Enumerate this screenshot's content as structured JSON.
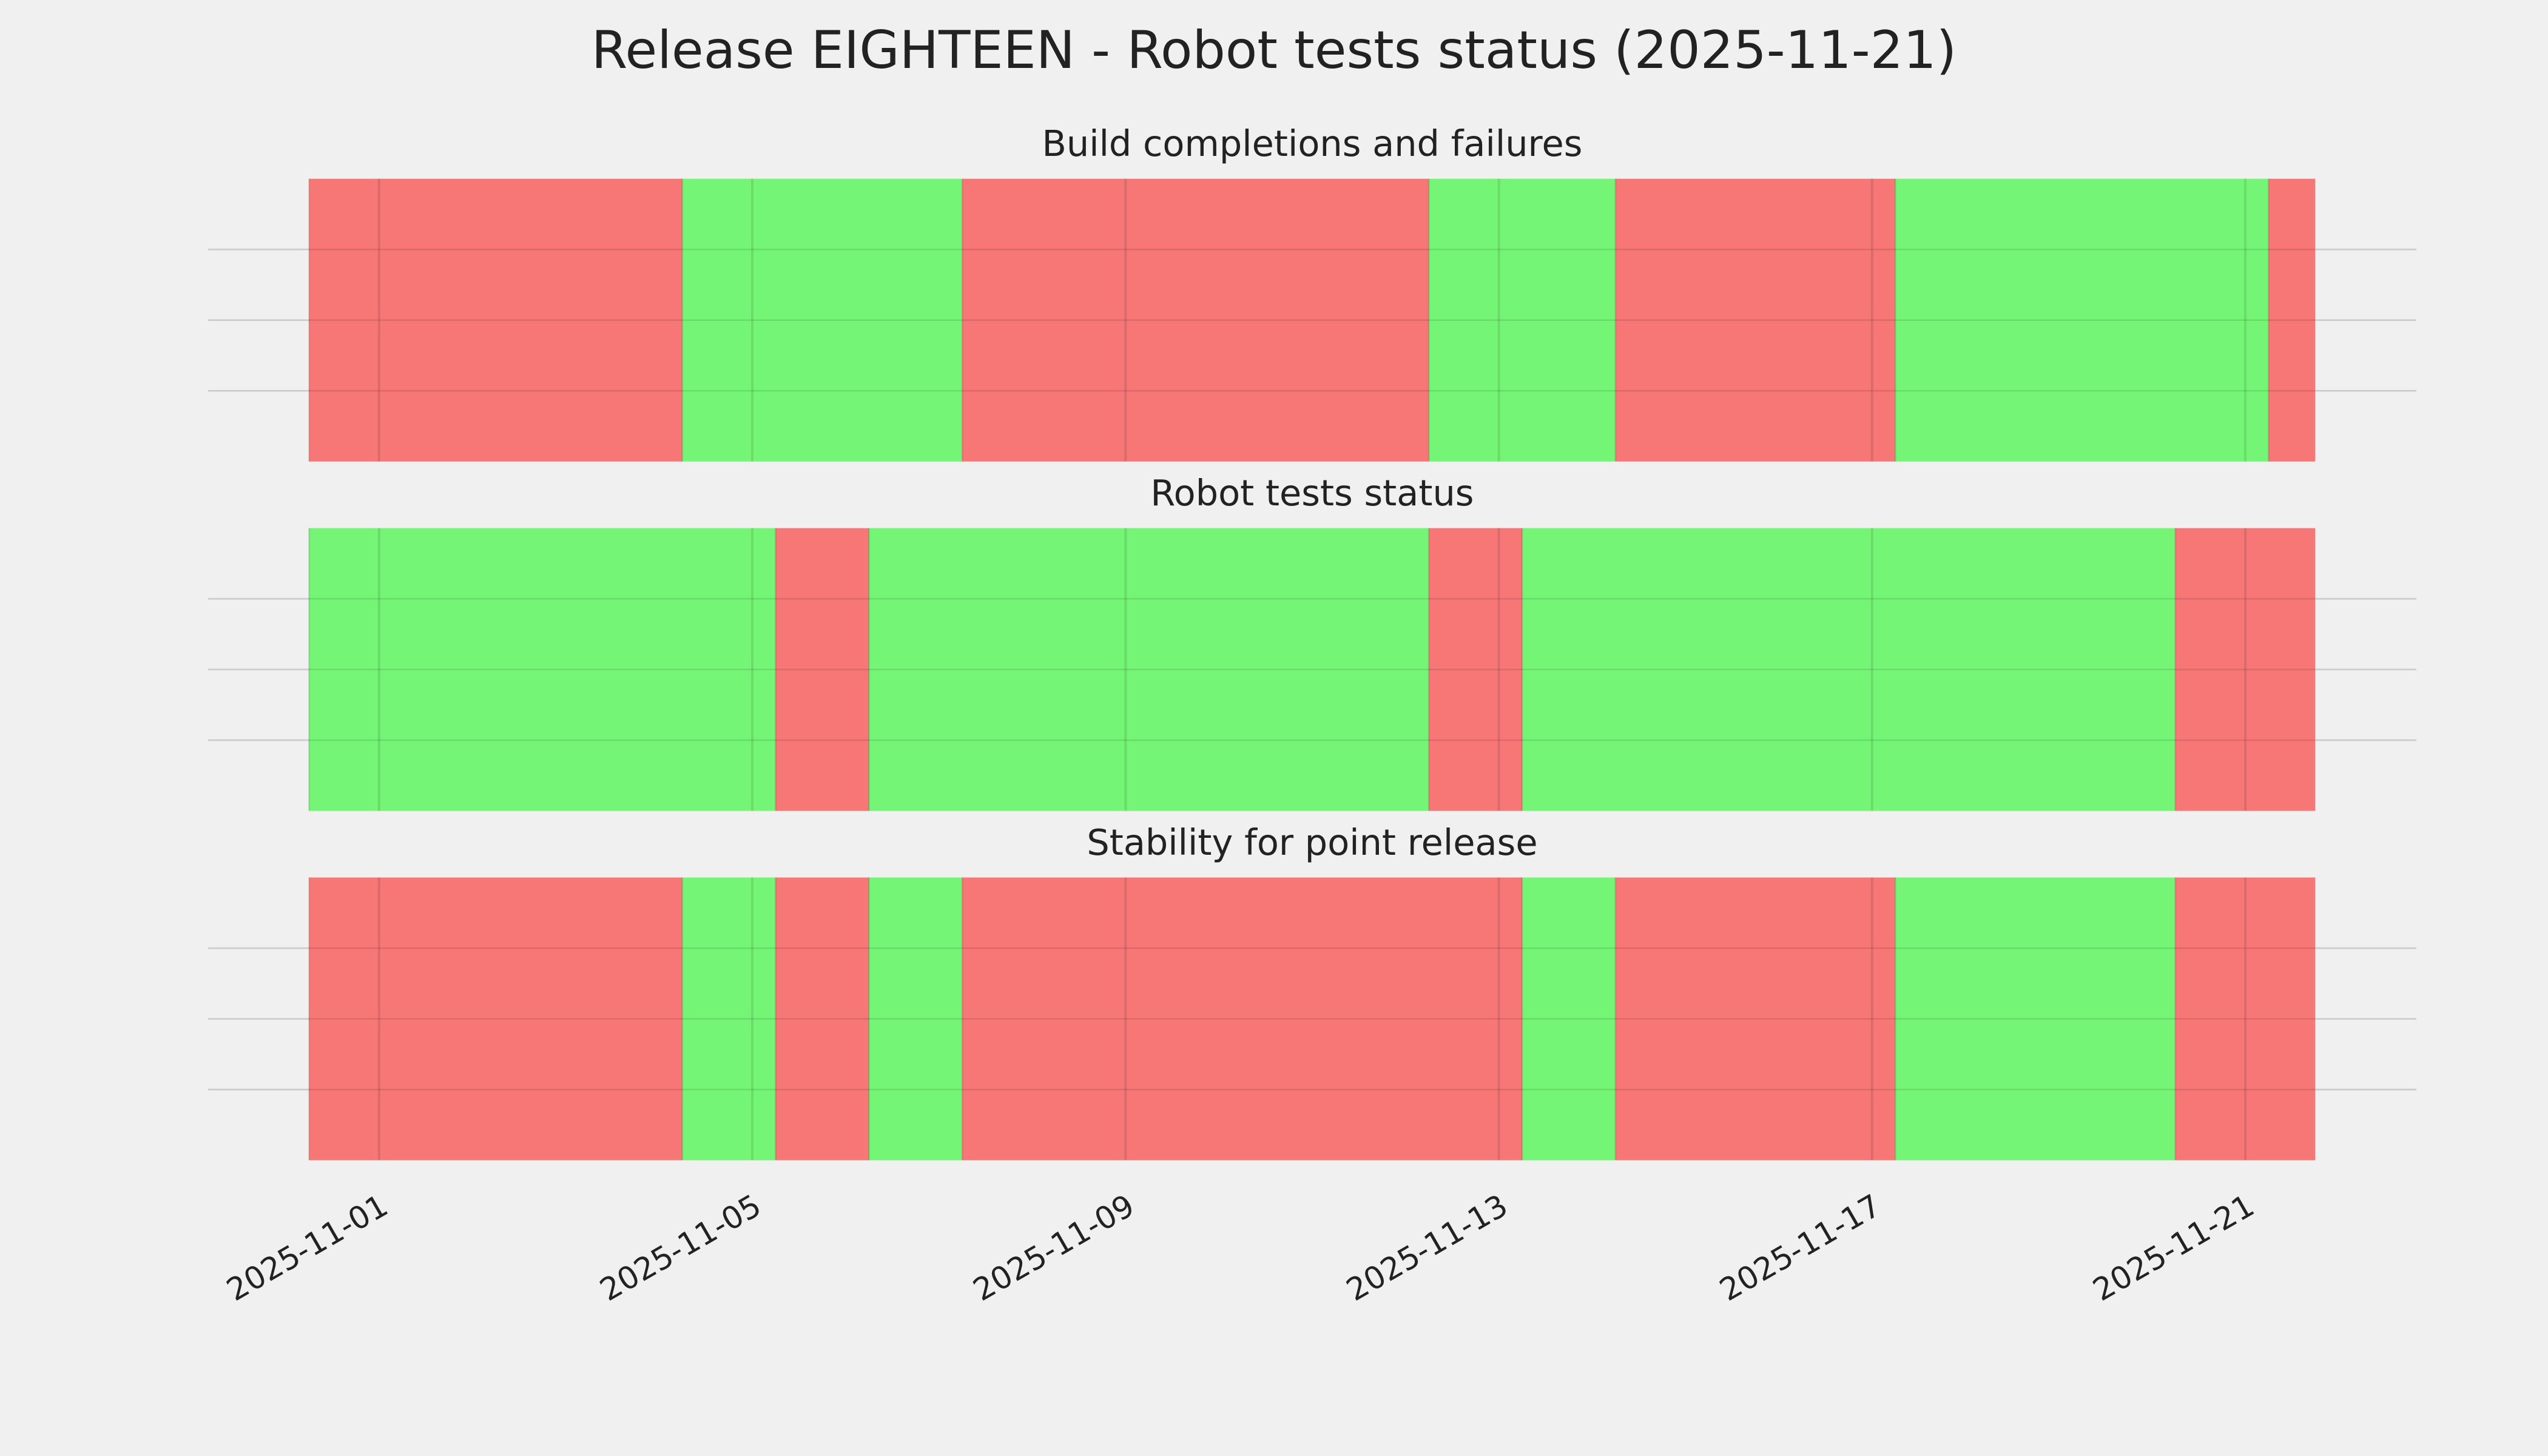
{
  "title": "Release EIGHTEEN - Robot tests status (2025-11-21)",
  "chart_data": [
    {
      "type": "timeline",
      "title": "Build completions and failures",
      "segments": [
        {
          "start": "2025-10-31 06:00",
          "end": "2025-11-04 06:00",
          "color": "#f77777"
        },
        {
          "start": "2025-11-04 06:00",
          "end": "2025-11-07 06:00",
          "color": "#75f575"
        },
        {
          "start": "2025-11-07 06:00",
          "end": "2025-11-12 06:00",
          "color": "#f77777"
        },
        {
          "start": "2025-11-12 06:00",
          "end": "2025-11-14 06:00",
          "color": "#75f575"
        },
        {
          "start": "2025-11-14 06:00",
          "end": "2025-11-17 06:00",
          "color": "#f77777"
        },
        {
          "start": "2025-11-17 06:00",
          "end": "2025-11-21 06:00",
          "color": "#75f575"
        },
        {
          "start": "2025-11-21 06:00",
          "end": "2025-11-21 18:00",
          "color": "#f77777"
        }
      ],
      "xlim": [
        "2025-10-30 04:00",
        "2025-11-22 20:00"
      ],
      "xticks": [
        "2025-11-01",
        "2025-11-05",
        "2025-11-09",
        "2025-11-13",
        "2025-11-17",
        "2025-11-21"
      ],
      "ylim": [
        0,
        1
      ],
      "yticks": [
        0.25,
        0.5,
        0.75
      ],
      "grid": true
    },
    {
      "type": "timeline",
      "title": "Robot tests status",
      "segments": [
        {
          "start": "2025-10-31 06:00",
          "end": "2025-11-05 06:00",
          "color": "#75f575"
        },
        {
          "start": "2025-11-05 06:00",
          "end": "2025-11-06 06:00",
          "color": "#f77777"
        },
        {
          "start": "2025-11-06 06:00",
          "end": "2025-11-12 06:00",
          "color": "#75f575"
        },
        {
          "start": "2025-11-12 06:00",
          "end": "2025-11-13 06:00",
          "color": "#f77777"
        },
        {
          "start": "2025-11-13 06:00",
          "end": "2025-11-20 06:00",
          "color": "#75f575"
        },
        {
          "start": "2025-11-20 06:00",
          "end": "2025-11-21 18:00",
          "color": "#f77777"
        }
      ],
      "xlim": [
        "2025-10-30 04:00",
        "2025-11-22 20:00"
      ],
      "xticks": [
        "2025-11-01",
        "2025-11-05",
        "2025-11-09",
        "2025-11-13",
        "2025-11-17",
        "2025-11-21"
      ],
      "ylim": [
        0,
        1
      ],
      "yticks": [
        0.25,
        0.5,
        0.75
      ],
      "grid": true
    },
    {
      "type": "timeline",
      "title": "Stability for point release",
      "segments": [
        {
          "start": "2025-10-31 06:00",
          "end": "2025-11-04 06:00",
          "color": "#f77777"
        },
        {
          "start": "2025-11-04 06:00",
          "end": "2025-11-05 06:00",
          "color": "#75f575"
        },
        {
          "start": "2025-11-05 06:00",
          "end": "2025-11-06 06:00",
          "color": "#f77777"
        },
        {
          "start": "2025-11-06 06:00",
          "end": "2025-11-07 06:00",
          "color": "#75f575"
        },
        {
          "start": "2025-11-07 06:00",
          "end": "2025-11-13 06:00",
          "color": "#f77777"
        },
        {
          "start": "2025-11-13 06:00",
          "end": "2025-11-14 06:00",
          "color": "#75f575"
        },
        {
          "start": "2025-11-14 06:00",
          "end": "2025-11-17 06:00",
          "color": "#f77777"
        },
        {
          "start": "2025-11-17 06:00",
          "end": "2025-11-20 06:00",
          "color": "#75f575"
        },
        {
          "start": "2025-11-20 06:00",
          "end": "2025-11-21 18:00",
          "color": "#f77777"
        }
      ],
      "xlim": [
        "2025-10-30 04:00",
        "2025-11-22 20:00"
      ],
      "xticks": [
        "2025-11-01",
        "2025-11-05",
        "2025-11-09",
        "2025-11-13",
        "2025-11-17",
        "2025-11-21"
      ],
      "ylim": [
        0,
        1
      ],
      "yticks": [
        0.25,
        0.5,
        0.75
      ],
      "grid": true
    }
  ]
}
